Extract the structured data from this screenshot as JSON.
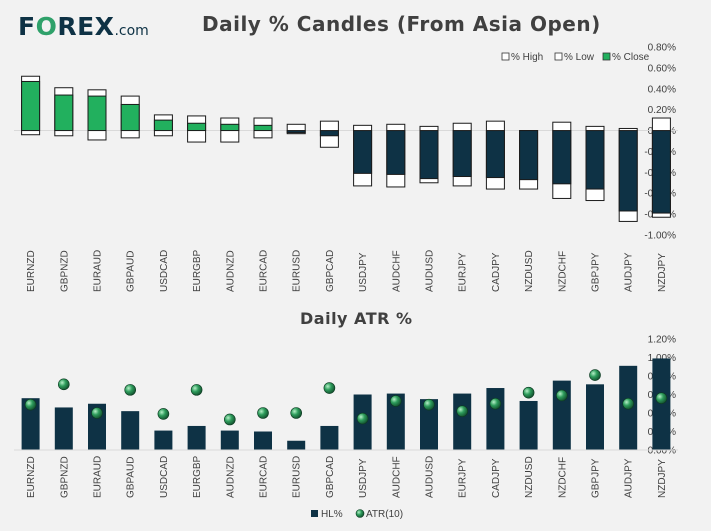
{
  "brand": {
    "name_pre": "F",
    "name_o": "O",
    "name_post": "REX",
    "domain": ".com"
  },
  "colors": {
    "close_fill": "#22b05e",
    "bar": "#0e3245",
    "dot": "#2e8b57",
    "accent_dark": "#0e3245"
  },
  "chart_data": [
    {
      "type": "candlestick",
      "title": "Daily % Candles (From Asia Open)",
      "categories": [
        "EURNZD",
        "GBPNZD",
        "EURAUD",
        "GBPAUD",
        "USDCAD",
        "EURGBP",
        "AUDNZD",
        "EURCAD",
        "EURUSD",
        "GBPCAD",
        "USDJPY",
        "AUDCHF",
        "AUDUSD",
        "EURJPY",
        "CADJPY",
        "NZDUSD",
        "NZDCHF",
        "GBPJPY",
        "AUDJPY",
        "NZDJPY"
      ],
      "high": [
        0.52,
        0.41,
        0.39,
        0.33,
        0.15,
        0.14,
        0.12,
        0.12,
        0.06,
        0.09,
        0.05,
        0.06,
        0.04,
        0.07,
        0.09,
        0.0,
        0.08,
        0.04,
        0.02,
        0.12
      ],
      "low": [
        -0.04,
        -0.05,
        -0.09,
        -0.07,
        -0.05,
        -0.11,
        -0.11,
        -0.07,
        -0.03,
        -0.16,
        -0.53,
        -0.54,
        -0.5,
        -0.53,
        -0.56,
        -0.56,
        -0.65,
        -0.67,
        -0.87,
        -0.83
      ],
      "close": [
        0.47,
        0.34,
        0.33,
        0.25,
        0.1,
        0.07,
        0.06,
        0.05,
        -0.02,
        -0.05,
        -0.41,
        -0.42,
        -0.46,
        -0.44,
        -0.45,
        -0.47,
        -0.51,
        -0.56,
        -0.77,
        -0.79
      ],
      "y_ticks": [
        "0.80%",
        "0.60%",
        "0.40%",
        "0.20%",
        "0.00%",
        "-0.20%",
        "-0.40%",
        "-0.60%",
        "-0.80%",
        "-1.00%"
      ],
      "ylim": [
        -1.0,
        0.8
      ],
      "legend": [
        "% High",
        "% Low",
        "% Close"
      ],
      "legend_position": "top-right"
    },
    {
      "type": "bar",
      "title": "Daily ATR %",
      "categories": [
        "EURNZD",
        "GBPNZD",
        "EURAUD",
        "GBPAUD",
        "USDCAD",
        "EURGBP",
        "AUDNZD",
        "EURCAD",
        "EURUSD",
        "GBPCAD",
        "USDJPY",
        "AUDCHF",
        "AUDUSD",
        "EURJPY",
        "CADJPY",
        "NZDUSD",
        "NZDCHF",
        "GBPJPY",
        "AUDJPY",
        "NZDJPY"
      ],
      "series": [
        {
          "name": "HL%",
          "values": [
            0.56,
            0.46,
            0.5,
            0.42,
            0.21,
            0.26,
            0.21,
            0.2,
            0.1,
            0.26,
            0.6,
            0.61,
            0.55,
            0.61,
            0.67,
            0.53,
            0.75,
            0.71,
            0.91,
            0.99
          ]
        },
        {
          "name": "ATR(10)",
          "values": [
            0.49,
            0.71,
            0.4,
            0.65,
            0.39,
            0.65,
            0.33,
            0.4,
            0.4,
            0.67,
            0.34,
            0.53,
            0.49,
            0.42,
            0.5,
            0.62,
            0.59,
            0.81,
            0.5,
            0.56
          ]
        }
      ],
      "y_ticks": [
        "1.20%",
        "1.00%",
        "0.80%",
        "0.60%",
        "0.40%",
        "0.20%",
        "0.00%"
      ],
      "ylim": [
        0,
        1.2
      ],
      "legend_position": "bottom"
    }
  ]
}
